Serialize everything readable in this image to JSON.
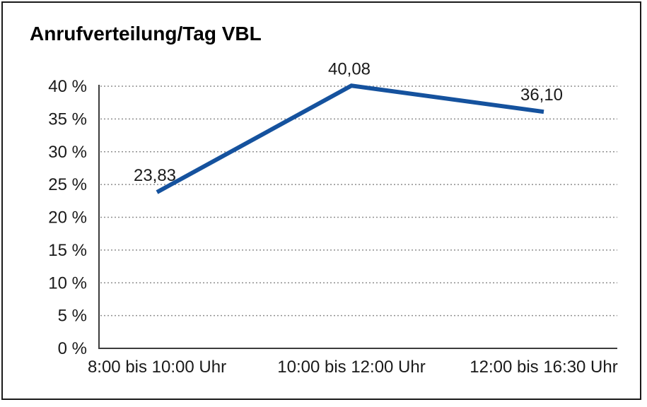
{
  "window": {
    "background": "#ffffff",
    "frame_border_color": "#1a1a1a"
  },
  "chart_data": {
    "type": "line",
    "title": "Anrufverteilung/Tag VBL",
    "categories": [
      "8:00 bis 10:00 Uhr",
      "10:00 bis 12:00 Uhr",
      "12:00 bis 16:30 Uhr"
    ],
    "series": [
      {
        "values": [
          23.83,
          40.08,
          36.1
        ],
        "data_labels": [
          "23,83",
          "40,08",
          "36,10"
        ],
        "color": "#15529E"
      }
    ],
    "xlabel": "",
    "ylabel": "",
    "ylim": [
      0,
      40
    ],
    "ytick_step": 5,
    "ytick_labels": [
      "0 %",
      "5 %",
      "10 %",
      "15 %",
      "20 %",
      "25 %",
      "30 %",
      "35 %",
      "40 %"
    ],
    "grid": true,
    "gridline_color": "#8f8f8f",
    "axis_color": "#3c3c3c",
    "text_color": "#1a1a1a",
    "legend": "none"
  }
}
